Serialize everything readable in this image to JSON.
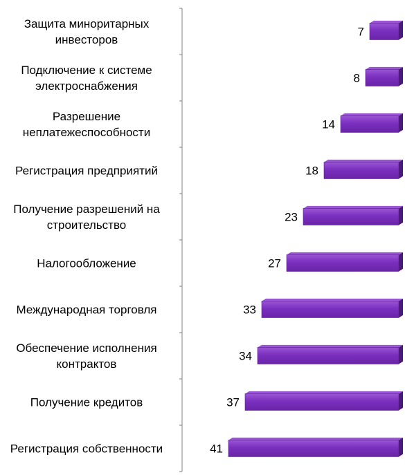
{
  "chart_data": {
    "type": "bar",
    "orientation": "horizontal",
    "categories": [
      [
        "Защита миноритарных",
        "инвесторов"
      ],
      [
        "Подключение к системе",
        "электроснабжения"
      ],
      [
        "Разрешение",
        "неплатежеспособности"
      ],
      [
        "Регистрация предприятий"
      ],
      [
        "Получение разрешений на",
        "строительство"
      ],
      [
        "Налогообложение"
      ],
      [
        "Международная торговля"
      ],
      [
        "Обеспечение исполнения",
        "контрактов"
      ],
      [
        "Получение кредитов"
      ],
      [
        "Регистрация собственности"
      ]
    ],
    "values": [
      7,
      8,
      14,
      18,
      23,
      27,
      33,
      34,
      37,
      41
    ],
    "x_direction": "reversed",
    "xlim": [
      0,
      50
    ],
    "data_labels": true,
    "grid": false,
    "legend": "none",
    "colors": {
      "bar_fill": "#7b2fbe",
      "bar_top": "#9a55d4",
      "bar_side": "#4a1a78",
      "axis": "#808080"
    }
  }
}
